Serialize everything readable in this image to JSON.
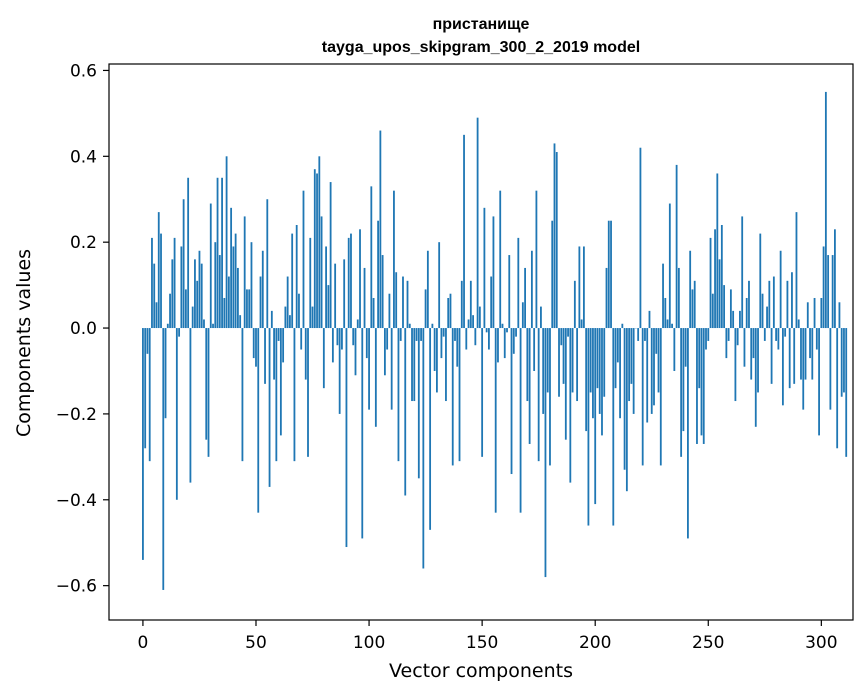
{
  "chart_data": {
    "type": "bar",
    "title": "пристанище",
    "subtitle": "tayga_upos_skipgram_300_2_2019 model",
    "xlabel": "Vector components",
    "ylabel": "Components values",
    "xlim": [
      -15,
      314
    ],
    "ylim": [
      -0.68,
      0.615
    ],
    "xticks": [
      0,
      50,
      100,
      150,
      200,
      250,
      300
    ],
    "yticks": [
      -0.6,
      -0.4,
      -0.2,
      0.0,
      0.2,
      0.4,
      0.6
    ],
    "ytick_labels": [
      "−0.6",
      "−0.4",
      "−0.2",
      "0.0",
      "0.2",
      "0.4",
      "0.6"
    ],
    "bar_color": "#1f77b4",
    "grid": false,
    "values": [
      -0.54,
      -0.28,
      -0.06,
      -0.31,
      0.21,
      0.15,
      0.06,
      0.27,
      0.22,
      -0.61,
      -0.21,
      0.01,
      0.08,
      0.16,
      0.21,
      -0.4,
      -0.02,
      0.19,
      0.3,
      0.09,
      0.35,
      -0.36,
      0.05,
      0.16,
      0.11,
      0.18,
      0.15,
      0.02,
      -0.26,
      -0.3,
      0.29,
      0.01,
      0.2,
      0.35,
      0.17,
      0.35,
      0.07,
      0.4,
      0.12,
      0.28,
      0.19,
      0.22,
      0.14,
      0.03,
      -0.31,
      0.26,
      0.09,
      0.09,
      0.2,
      -0.07,
      -0.09,
      -0.43,
      0.12,
      0.18,
      -0.13,
      0.3,
      -0.37,
      0.04,
      -0.12,
      -0.31,
      -0.03,
      -0.25,
      -0.08,
      0.05,
      0.12,
      0.03,
      0.22,
      -0.31,
      0.24,
      0.08,
      -0.05,
      0.32,
      -0.12,
      -0.3,
      0.21,
      0.05,
      0.37,
      0.36,
      0.4,
      0.26,
      -0.14,
      0.19,
      0.1,
      0.34,
      -0.08,
      0.15,
      -0.04,
      -0.2,
      -0.05,
      0.16,
      -0.51,
      0.21,
      0.22,
      -0.04,
      -0.11,
      0.02,
      0.23,
      -0.49,
      0.14,
      -0.07,
      -0.19,
      0.33,
      0.07,
      -0.23,
      0.25,
      0.46,
      0.17,
      -0.11,
      -0.05,
      0.08,
      -0.19,
      0.32,
      0.13,
      -0.31,
      -0.03,
      0.12,
      -0.39,
      0.11,
      0.01,
      -0.17,
      -0.17,
      -0.03,
      -0.35,
      -0.03,
      -0.56,
      0.09,
      0.18,
      -0.47,
      0.01,
      -0.1,
      -0.15,
      0.2,
      -0.07,
      -0.02,
      -0.17,
      0.07,
      0.08,
      -0.32,
      -0.03,
      -0.09,
      -0.31,
      0.11,
      0.45,
      -0.05,
      0.02,
      0.11,
      0.03,
      -0.04,
      0.49,
      0.05,
      -0.3,
      0.28,
      -0.01,
      -0.05,
      0.12,
      0.26,
      -0.43,
      -0.08,
      0.32,
      0.01,
      -0.07,
      -0.01,
      0.17,
      -0.34,
      -0.06,
      -0.02,
      0.21,
      -0.43,
      0.06,
      0.14,
      -0.17,
      -0.27,
      0.18,
      -0.1,
      0.32,
      -0.31,
      0.05,
      -0.2,
      -0.58,
      -0.15,
      -0.32,
      0.25,
      0.43,
      0.41,
      -0.16,
      -0.04,
      -0.13,
      -0.26,
      -0.02,
      -0.36,
      -0.15,
      0.11,
      -0.17,
      0.19,
      0.02,
      0.19,
      -0.24,
      -0.46,
      -0.15,
      -0.21,
      -0.41,
      -0.14,
      -0.2,
      -0.25,
      -0.16,
      0.14,
      0.25,
      0.25,
      -0.46,
      -0.14,
      -0.08,
      -0.21,
      0.01,
      -0.33,
      -0.38,
      -0.17,
      -0.13,
      -0.2,
      0.0,
      -0.03,
      0.42,
      -0.32,
      -0.03,
      -0.22,
      0.04,
      -0.2,
      -0.18,
      -0.06,
      -0.15,
      -0.32,
      0.15,
      0.07,
      0.02,
      0.29,
      0.01,
      -0.1,
      0.38,
      0.14,
      -0.3,
      -0.24,
      -0.09,
      -0.49,
      0.18,
      0.09,
      0.11,
      -0.27,
      -0.14,
      -0.25,
      -0.27,
      -0.05,
      -0.03,
      0.21,
      0.08,
      0.23,
      0.36,
      0.16,
      0.24,
      0.1,
      -0.07,
      -0.03,
      0.09,
      0.04,
      -0.17,
      -0.04,
      0.04,
      0.26,
      -0.09,
      0.07,
      0.11,
      -0.12,
      -0.07,
      -0.23,
      -0.15,
      0.22,
      0.08,
      -0.03,
      0.05,
      0.11,
      -0.13,
      0.12,
      -0.03,
      -0.05,
      0.18,
      -0.18,
      -0.02,
      0.11,
      -0.14,
      0.13,
      -0.13,
      0.27,
      0.02,
      -0.12,
      -0.19,
      -0.12,
      0.06,
      -0.07,
      -0.12,
      0.07,
      -0.05,
      -0.25,
      0.07,
      0.19,
      0.55,
      0.17,
      -0.19,
      0.17,
      0.23,
      -0.28,
      0.06,
      -0.16,
      -0.15,
      -0.3
    ]
  }
}
